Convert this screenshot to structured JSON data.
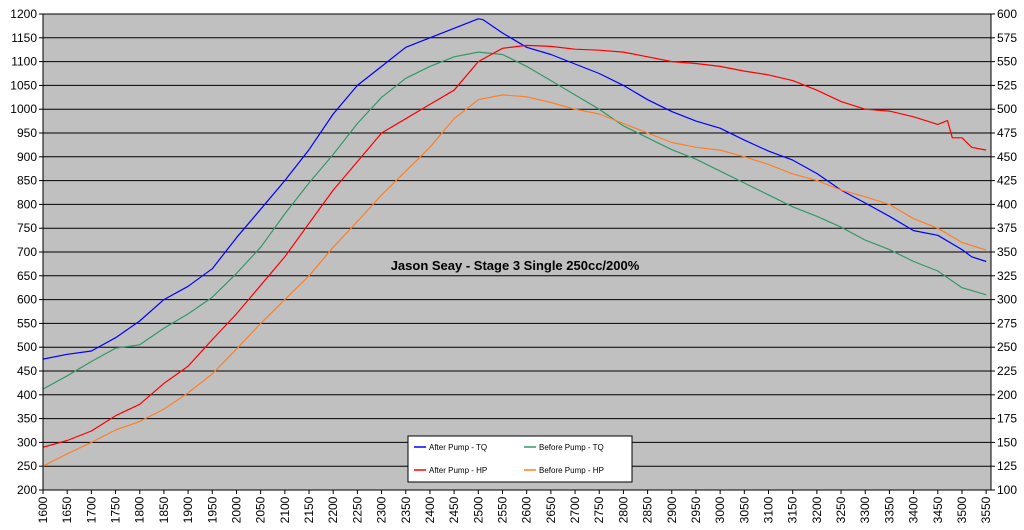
{
  "chart_data": {
    "type": "line",
    "title": "Jason Seay - Stage 3 Single 250cc/200%",
    "xlabel": "",
    "ylabel": "",
    "xlim": [
      1600,
      3560
    ],
    "ylim": [
      200,
      1200
    ],
    "y2lim": [
      100,
      600
    ],
    "grid": "horizontal",
    "plot_background": "#c0c0c0",
    "legend_position": "bottom-center",
    "x_ticks": [
      "1600",
      "1650",
      "1700",
      "1750",
      "1800",
      "1850",
      "1900",
      "1950",
      "2000",
      "2050",
      "2100",
      "2150",
      "2200",
      "2250",
      "2300",
      "2350",
      "2400",
      "2450",
      "2500",
      "2550",
      "2600",
      "2650",
      "2700",
      "2750",
      "2800",
      "2850",
      "2900",
      "2950",
      "3000",
      "3050",
      "3100",
      "3150",
      "3200",
      "3250",
      "3300",
      "3350",
      "3400",
      "3450",
      "3500",
      "3550"
    ],
    "y_ticks": [
      "200",
      "250",
      "300",
      "350",
      "400",
      "450",
      "500",
      "550",
      "600",
      "650",
      "700",
      "750",
      "800",
      "850",
      "900",
      "950",
      "1000",
      "1050",
      "1100",
      "1150",
      "1200"
    ],
    "y2_ticks": [
      "100",
      "125",
      "150",
      "175",
      "200",
      "225",
      "250",
      "275",
      "300",
      "325",
      "350",
      "375",
      "400",
      "425",
      "450",
      "475",
      "500",
      "525",
      "550",
      "575",
      "600"
    ],
    "series": [
      {
        "name": "After Pump - TQ",
        "color": "#0000ff",
        "axis": "left",
        "x": [
          1600,
          1650,
          1700,
          1750,
          1800,
          1850,
          1900,
          1950,
          2000,
          2050,
          2100,
          2150,
          2200,
          2250,
          2300,
          2350,
          2400,
          2450,
          2500,
          2510,
          2550,
          2600,
          2650,
          2700,
          2750,
          2800,
          2850,
          2900,
          2950,
          3000,
          3050,
          3100,
          3150,
          3200,
          3250,
          3300,
          3350,
          3400,
          3450,
          3500,
          3520,
          3550
        ],
        "y": [
          475,
          485,
          492,
          520,
          555,
          600,
          628,
          665,
          730,
          790,
          850,
          915,
          990,
          1050,
          1090,
          1130,
          1150,
          1170,
          1190,
          1188,
          1160,
          1130,
          1115,
          1095,
          1075,
          1050,
          1020,
          995,
          975,
          960,
          935,
          912,
          893,
          865,
          830,
          803,
          775,
          745,
          735,
          705,
          690,
          680
        ]
      },
      {
        "name": "Before Pump - TQ",
        "color": "#339966",
        "axis": "left",
        "x": [
          1600,
          1650,
          1700,
          1750,
          1800,
          1850,
          1900,
          1950,
          2000,
          2050,
          2100,
          2150,
          2200,
          2250,
          2300,
          2350,
          2400,
          2450,
          2500,
          2550,
          2600,
          2650,
          2700,
          2750,
          2800,
          2850,
          2900,
          2950,
          3000,
          3050,
          3100,
          3150,
          3200,
          3250,
          3300,
          3350,
          3400,
          3450,
          3500,
          3550
        ],
        "y": [
          412,
          440,
          470,
          498,
          505,
          540,
          570,
          605,
          655,
          710,
          780,
          845,
          905,
          970,
          1025,
          1065,
          1090,
          1110,
          1120,
          1115,
          1090,
          1060,
          1030,
          1000,
          965,
          940,
          915,
          895,
          870,
          845,
          820,
          795,
          775,
          752,
          725,
          705,
          680,
          660,
          625,
          610
        ]
      },
      {
        "name": "After Pump - HP",
        "color": "#ff0000",
        "axis": "right",
        "x": [
          1600,
          1650,
          1700,
          1750,
          1800,
          1850,
          1900,
          1950,
          2000,
          2050,
          2100,
          2150,
          2200,
          2250,
          2300,
          2350,
          2400,
          2450,
          2500,
          2550,
          2600,
          2650,
          2700,
          2750,
          2800,
          2850,
          2900,
          2950,
          3000,
          3050,
          3100,
          3150,
          3200,
          3250,
          3300,
          3350,
          3400,
          3450,
          3470,
          3480,
          3500,
          3520,
          3550
        ],
        "y": [
          145,
          152,
          162,
          178,
          190,
          212,
          230,
          258,
          285,
          315,
          345,
          380,
          415,
          445,
          475,
          490,
          505,
          520,
          550,
          564,
          567,
          566,
          563,
          562,
          560,
          555,
          550,
          548,
          545,
          540,
          536,
          530,
          520,
          508,
          500,
          498,
          492,
          484,
          488,
          470,
          470,
          460,
          457
        ]
      },
      {
        "name": "Before Pump - HP",
        "color": "#ff7f27",
        "axis": "right",
        "x": [
          1600,
          1650,
          1700,
          1750,
          1800,
          1850,
          1900,
          1950,
          2000,
          2050,
          2100,
          2150,
          2200,
          2250,
          2300,
          2350,
          2400,
          2450,
          2500,
          2550,
          2600,
          2650,
          2700,
          2750,
          2800,
          2850,
          2900,
          2950,
          3000,
          3050,
          3100,
          3150,
          3200,
          3250,
          3300,
          3350,
          3400,
          3450,
          3500,
          3550
        ],
        "y": [
          125,
          138,
          150,
          163,
          172,
          185,
          202,
          222,
          248,
          275,
          300,
          325,
          355,
          382,
          410,
          435,
          460,
          490,
          510,
          515,
          513,
          507,
          500,
          495,
          485,
          475,
          465,
          460,
          457,
          450,
          442,
          432,
          425,
          415,
          408,
          400,
          385,
          375,
          360,
          352
        ]
      }
    ]
  }
}
